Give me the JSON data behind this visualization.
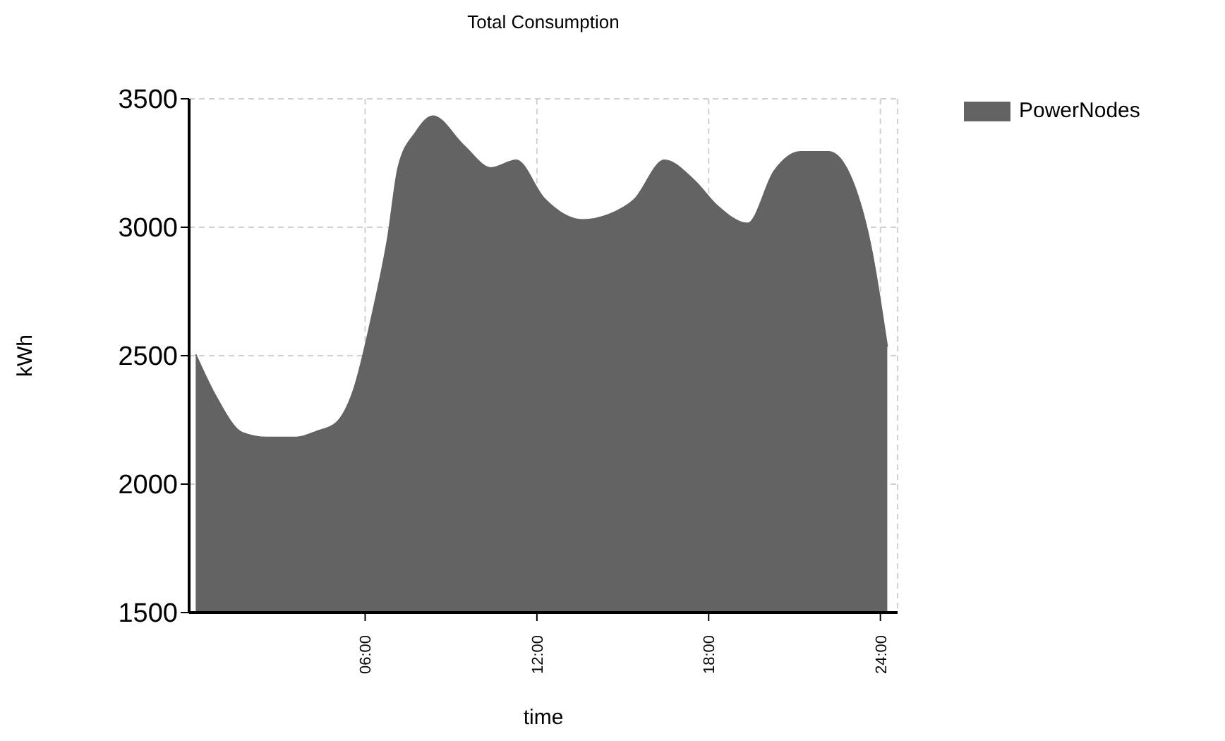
{
  "chart_data": {
    "type": "area",
    "title": "Total Consumption",
    "xlabel": "time",
    "ylabel": "kWh",
    "x": [
      0.08,
      0.8,
      1.7,
      2.56,
      3.6,
      4.3,
      5.0,
      5.57,
      6.27,
      6.8,
      7.15,
      7.76,
      8.37,
      9.44,
      10.4,
      11.28,
      12.25,
      13.6,
      14.5,
      15.4,
      16.45,
      17.5,
      18.3,
      19.36,
      20.3,
      21.2,
      22.2,
      23.15,
      23.7,
      24.24
    ],
    "series": [
      {
        "name": "PowerNodes",
        "color": "#636363",
        "values": [
          2505,
          2339,
          2201,
          2182,
          2182,
          2205,
          2240,
          2358,
          2672,
          2966,
          3231,
          3369,
          3433,
          3319,
          3231,
          3261,
          3113,
          3029,
          3049,
          3108,
          3261,
          3182,
          3084,
          3015,
          3221,
          3294,
          3294,
          3143,
          2907,
          2535
        ]
      }
    ],
    "xlim": [
      -0.15,
      24.6
    ],
    "xticks": [
      {
        "value": 6,
        "label": "06:00"
      },
      {
        "value": 12,
        "label": "12:00"
      },
      {
        "value": 18,
        "label": "18:00"
      },
      {
        "value": 24,
        "label": "24:00"
      }
    ],
    "ylim": [
      1500,
      3500
    ],
    "yticks": [
      1500,
      2000,
      2500,
      3000,
      3500
    ],
    "grid": true,
    "legend": "top right"
  }
}
